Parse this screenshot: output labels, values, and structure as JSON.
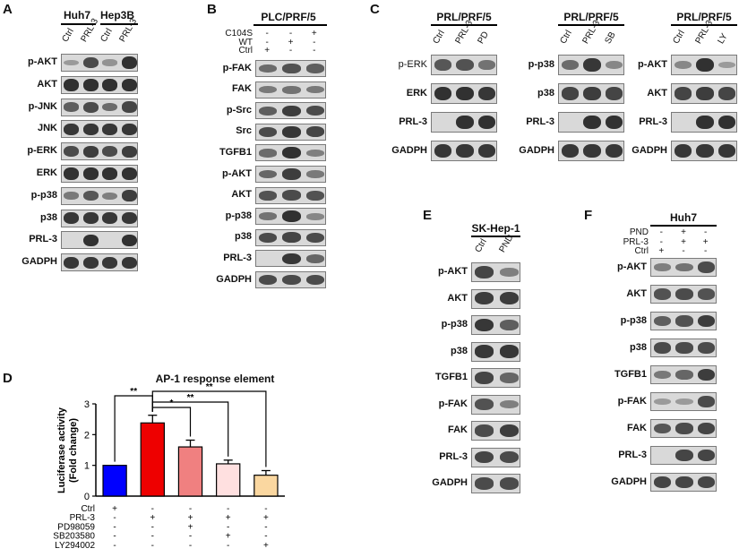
{
  "panels": {
    "A": {
      "label": "A",
      "groups": [
        "Huh7",
        "Hep3B"
      ],
      "lanes": [
        "Ctrl",
        "PRL-3",
        "Ctrl",
        "PRL-3"
      ],
      "rows": [
        {
          "name": "p-AKT",
          "i": [
            0.15,
            0.75,
            0.2,
            0.95
          ]
        },
        {
          "name": "AKT",
          "i": [
            0.95,
            0.95,
            0.95,
            0.95
          ]
        },
        {
          "name": "p-JNK",
          "i": [
            0.6,
            0.75,
            0.5,
            0.8
          ]
        },
        {
          "name": "JNK",
          "i": [
            0.9,
            0.9,
            0.9,
            0.9
          ]
        },
        {
          "name": "p-ERK",
          "i": [
            0.75,
            0.85,
            0.75,
            0.85
          ]
        },
        {
          "name": "ERK",
          "i": [
            0.95,
            0.95,
            0.95,
            0.95
          ]
        },
        {
          "name": "p-p38",
          "i": [
            0.4,
            0.65,
            0.35,
            0.85
          ]
        },
        {
          "name": "p38",
          "i": [
            0.9,
            0.9,
            0.9,
            0.9
          ]
        },
        {
          "name": "PRL-3",
          "i": [
            0.0,
            0.95,
            0.0,
            0.95
          ]
        },
        {
          "name": "GADPH",
          "i": [
            0.9,
            0.9,
            0.9,
            0.9
          ]
        }
      ]
    },
    "B": {
      "label": "B",
      "title": "PLC/PRF/5",
      "conds": [
        {
          "name": "C104S",
          "signs": [
            "-",
            "-",
            "+"
          ]
        },
        {
          "name": "WT",
          "signs": [
            "-",
            "+",
            "-"
          ]
        },
        {
          "name": "Ctrl",
          "signs": [
            "+",
            "-",
            "-"
          ]
        }
      ],
      "rows": [
        {
          "name": "p-FAK",
          "i": [
            0.5,
            0.7,
            0.6
          ]
        },
        {
          "name": "FAK",
          "i": [
            0.4,
            0.45,
            0.4
          ]
        },
        {
          "name": "p-Src",
          "i": [
            0.6,
            0.85,
            0.75
          ]
        },
        {
          "name": "Src",
          "i": [
            0.75,
            0.9,
            0.8
          ]
        },
        {
          "name": "TGFB1",
          "i": [
            0.5,
            0.95,
            0.35
          ]
        },
        {
          "name": "p-AKT",
          "i": [
            0.55,
            0.85,
            0.4
          ]
        },
        {
          "name": "AKT",
          "i": [
            0.7,
            0.75,
            0.7
          ]
        },
        {
          "name": "p-p38",
          "i": [
            0.45,
            0.95,
            0.3
          ]
        },
        {
          "name": "p38",
          "i": [
            0.75,
            0.8,
            0.75
          ]
        },
        {
          "name": "PRL-3",
          "i": [
            0.0,
            0.9,
            0.55
          ]
        },
        {
          "name": "GADPH",
          "i": [
            0.75,
            0.75,
            0.75
          ]
        }
      ]
    },
    "C": {
      "label": "C",
      "subpanels": [
        {
          "title": "PRL/PRF/5",
          "lanes": [
            "Ctrl",
            "PRL-3",
            "PD"
          ],
          "rows": [
            {
              "name": "p-ERK",
              "bold": false,
              "i": [
                0.65,
                0.7,
                0.45
              ]
            },
            {
              "name": "ERK",
              "bold": true,
              "i": [
                0.95,
                0.95,
                0.9
              ]
            },
            {
              "name": "PRL-3",
              "bold": true,
              "i": [
                0.0,
                0.95,
                0.95
              ]
            },
            {
              "name": "GADPH",
              "bold": true,
              "i": [
                0.9,
                0.9,
                0.9
              ]
            }
          ]
        },
        {
          "title": "PRL/PRF/5",
          "lanes": [
            "Ctrl",
            "PRL-3",
            "SB"
          ],
          "rows": [
            {
              "name": "p-p38",
              "bold": true,
              "i": [
                0.5,
                0.9,
                0.3
              ]
            },
            {
              "name": "p38",
              "bold": true,
              "i": [
                0.8,
                0.85,
                0.8
              ]
            },
            {
              "name": "PRL-3",
              "bold": true,
              "i": [
                0.0,
                0.95,
                0.95
              ]
            },
            {
              "name": "GADPH",
              "bold": true,
              "i": [
                0.9,
                0.9,
                0.9
              ]
            }
          ]
        },
        {
          "title": "PRL/PRF/5",
          "lanes": [
            "Ctrl",
            "PRL-3",
            "LY"
          ],
          "rows": [
            {
              "name": "p-AKT",
              "bold": true,
              "i": [
                0.3,
                0.95,
                0.15
              ]
            },
            {
              "name": "AKT",
              "bold": true,
              "i": [
                0.8,
                0.85,
                0.8
              ]
            },
            {
              "name": "PRL-3",
              "bold": true,
              "i": [
                0.0,
                0.95,
                0.95
              ]
            },
            {
              "name": "GADPH",
              "bold": true,
              "i": [
                0.9,
                0.9,
                0.9
              ]
            }
          ]
        }
      ]
    },
    "D": {
      "label": "D",
      "chart_data": {
        "type": "bar",
        "title": "AP-1 response element",
        "ylabel": "Luciferase activity\n(Fold change)",
        "ylim": [
          0,
          3
        ],
        "yticks": [
          0,
          1,
          2,
          3
        ],
        "values": [
          1.0,
          2.38,
          1.6,
          1.05,
          0.68
        ],
        "errors": [
          0.0,
          0.25,
          0.22,
          0.12,
          0.15
        ],
        "colors": [
          "#0000ff",
          "#ee0000",
          "#f08080",
          "#ffe0e0",
          "#fad7a0"
        ],
        "conditions": [
          {
            "name": "Ctrl",
            "signs": [
              "+",
              "-",
              "-",
              "-",
              "-"
            ]
          },
          {
            "name": "PRL-3",
            "signs": [
              "-",
              "+",
              "+",
              "+",
              "+"
            ]
          },
          {
            "name": "PD98059",
            "signs": [
              "-",
              "-",
              "+",
              "-",
              "-"
            ]
          },
          {
            "name": "SB203580",
            "signs": [
              "-",
              "-",
              "-",
              "+",
              "-"
            ]
          },
          {
            "name": "LY294002",
            "signs": [
              "-",
              "-",
              "-",
              "-",
              "+"
            ]
          }
        ],
        "significance": [
          {
            "from": 0,
            "to": 1,
            "label": "**"
          },
          {
            "from": 1,
            "to": 2,
            "label": "*"
          },
          {
            "from": 1,
            "to": 3,
            "label": "**"
          },
          {
            "from": 1,
            "to": 4,
            "label": "**"
          }
        ]
      }
    },
    "E": {
      "label": "E",
      "title": "SK-Hep-1",
      "lanes": [
        "Ctrl",
        "PND"
      ],
      "rows": [
        {
          "name": "p-AKT",
          "i": [
            0.8,
            0.35
          ]
        },
        {
          "name": "AKT",
          "i": [
            0.85,
            0.85
          ]
        },
        {
          "name": "p-p38",
          "i": [
            0.9,
            0.6
          ]
        },
        {
          "name": "p38",
          "i": [
            0.9,
            0.9
          ]
        },
        {
          "name": "TGFB1",
          "i": [
            0.8,
            0.55
          ]
        },
        {
          "name": "p-FAK",
          "i": [
            0.7,
            0.35
          ]
        },
        {
          "name": "FAK",
          "i": [
            0.75,
            0.85
          ]
        },
        {
          "name": "PRL-3",
          "i": [
            0.8,
            0.75
          ]
        },
        {
          "name": "GADPH",
          "i": [
            0.75,
            0.75
          ]
        }
      ]
    },
    "F": {
      "label": "F",
      "title": "Huh7",
      "conds": [
        {
          "name": "PND",
          "signs": [
            "-",
            "+",
            "-"
          ]
        },
        {
          "name": "PRL-3",
          "signs": [
            "-",
            "+",
            "+"
          ]
        },
        {
          "name": "Ctrl",
          "signs": [
            "+",
            "-",
            "-"
          ]
        }
      ],
      "rows": [
        {
          "name": "p-AKT",
          "i": [
            0.35,
            0.45,
            0.75
          ]
        },
        {
          "name": "AKT",
          "i": [
            0.7,
            0.75,
            0.7
          ]
        },
        {
          "name": "p-p38",
          "i": [
            0.6,
            0.7,
            0.85
          ]
        },
        {
          "name": "p38",
          "i": [
            0.75,
            0.75,
            0.75
          ]
        },
        {
          "name": "TGFB1",
          "i": [
            0.4,
            0.55,
            0.85
          ]
        },
        {
          "name": "p-FAK",
          "i": [
            0.15,
            0.15,
            0.75
          ]
        },
        {
          "name": "FAK",
          "i": [
            0.65,
            0.75,
            0.8
          ]
        },
        {
          "name": "PRL-3",
          "i": [
            0.0,
            0.8,
            0.8
          ]
        },
        {
          "name": "GADPH",
          "i": [
            0.8,
            0.8,
            0.8
          ]
        }
      ]
    }
  }
}
